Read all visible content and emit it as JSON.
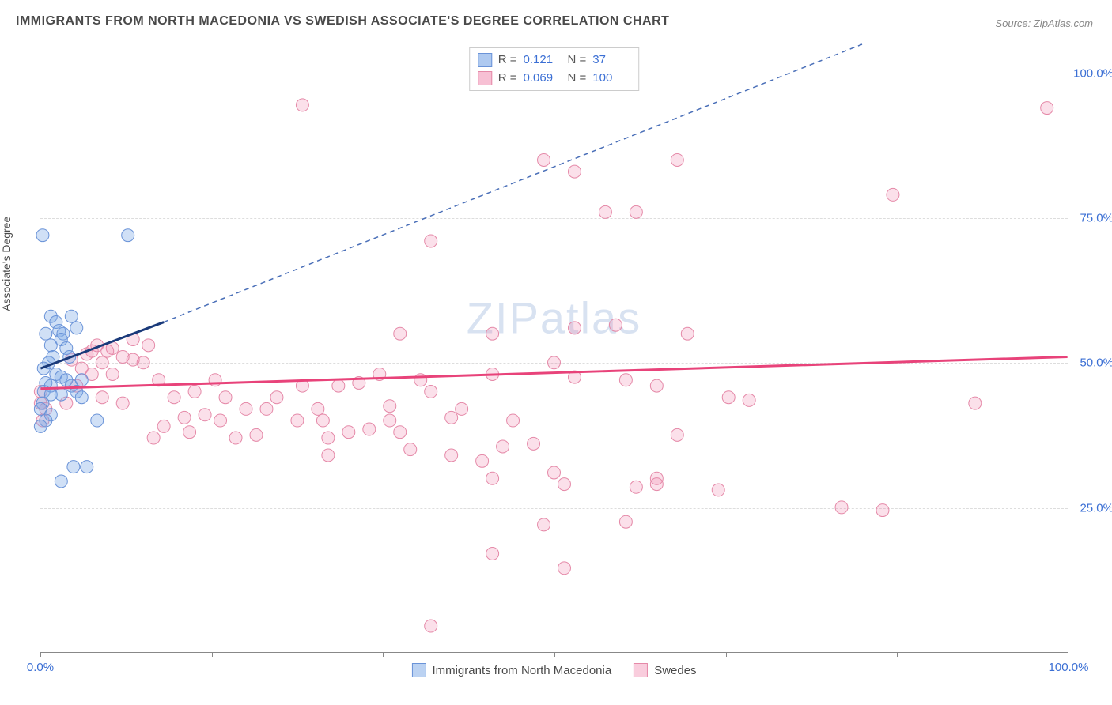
{
  "title": "IMMIGRANTS FROM NORTH MACEDONIA VS SWEDISH ASSOCIATE'S DEGREE CORRELATION CHART",
  "source": "Source: ZipAtlas.com",
  "y_axis_label": "Associate's Degree",
  "watermark": "ZIPatlas",
  "xlim": [
    0,
    100
  ],
  "ylim": [
    0,
    105
  ],
  "y_ticks": [
    25,
    50,
    75,
    100
  ],
  "y_tick_labels": [
    "25.0%",
    "50.0%",
    "75.0%",
    "100.0%"
  ],
  "x_ticks": [
    0,
    16.67,
    33.33,
    50,
    66.67,
    83.33,
    100
  ],
  "x_tick_labels": {
    "first": "0.0%",
    "last": "100.0%"
  },
  "series": {
    "blue": {
      "label": "Immigrants from North Macedonia",
      "fill_color": "rgba(120, 165, 230, 0.35)",
      "stroke_color": "#6a93d8",
      "R": "0.121",
      "N": "37",
      "marker_radius": 8,
      "trend_solid": {
        "x1": 0,
        "y1": 49,
        "x2": 12,
        "y2": 57,
        "color": "#1a3a7a",
        "width": 3
      },
      "trend_dashed": {
        "x1": 12,
        "y1": 57,
        "x2": 80,
        "y2": 105,
        "color": "#4a6fb8",
        "width": 1.5,
        "dash": "6,5"
      },
      "points": [
        [
          0.2,
          72
        ],
        [
          8.5,
          72
        ],
        [
          1,
          58
        ],
        [
          1.5,
          57
        ],
        [
          3,
          58
        ],
        [
          1.8,
          55.5
        ],
        [
          2.2,
          55
        ],
        [
          3.5,
          56
        ],
        [
          0.5,
          55
        ],
        [
          1,
          53
        ],
        [
          2,
          54
        ],
        [
          2.5,
          52.5
        ],
        [
          1.2,
          51
        ],
        [
          2.8,
          51
        ],
        [
          0.8,
          50
        ],
        [
          0.3,
          49
        ],
        [
          1.5,
          48
        ],
        [
          2,
          47.5
        ],
        [
          0.5,
          46.5
        ],
        [
          2.5,
          47
        ],
        [
          1,
          46
        ],
        [
          3,
          46
        ],
        [
          0.3,
          45
        ],
        [
          4,
          47
        ],
        [
          1,
          44.5
        ],
        [
          2,
          44.5
        ],
        [
          3.5,
          45
        ],
        [
          0.2,
          43
        ],
        [
          0,
          42
        ],
        [
          1,
          41
        ],
        [
          0.5,
          40
        ],
        [
          5.5,
          40
        ],
        [
          3.2,
          32
        ],
        [
          4.5,
          32
        ],
        [
          2,
          29.5
        ],
        [
          0,
          39
        ],
        [
          4,
          44
        ]
      ]
    },
    "pink": {
      "label": "Swedes",
      "fill_color": "rgba(240, 130, 170, 0.25)",
      "stroke_color": "#e589a8",
      "R": "0.069",
      "N": "100",
      "marker_radius": 8,
      "trend_solid": {
        "x1": 0,
        "y1": 45.5,
        "x2": 100,
        "y2": 51,
        "color": "#e8437a",
        "width": 3
      },
      "points": [
        [
          25.5,
          94.5
        ],
        [
          98,
          94
        ],
        [
          49,
          85
        ],
        [
          62,
          85
        ],
        [
          52,
          83
        ],
        [
          83,
          79
        ],
        [
          55,
          76
        ],
        [
          58,
          76
        ],
        [
          38,
          71
        ],
        [
          52,
          56
        ],
        [
          44,
          55
        ],
        [
          56,
          56.5
        ],
        [
          63,
          55
        ],
        [
          35,
          55
        ],
        [
          50,
          50
        ],
        [
          52,
          47.5
        ],
        [
          57,
          47
        ],
        [
          60,
          46
        ],
        [
          67,
          44
        ],
        [
          69,
          43.5
        ],
        [
          62,
          37.5
        ],
        [
          60,
          30
        ],
        [
          50,
          31
        ],
        [
          51,
          29
        ],
        [
          49,
          22
        ],
        [
          57,
          22.5
        ],
        [
          44,
          17
        ],
        [
          51,
          14.5
        ],
        [
          38,
          4.5
        ],
        [
          37,
          47
        ],
        [
          34,
          42.5
        ],
        [
          34,
          40
        ],
        [
          35,
          38
        ],
        [
          36,
          35
        ],
        [
          43,
          33
        ],
        [
          44,
          30
        ],
        [
          45,
          35.5
        ],
        [
          48,
          36
        ],
        [
          46,
          40
        ],
        [
          40,
          40.5
        ],
        [
          41,
          42
        ],
        [
          44,
          48
        ],
        [
          38,
          45
        ],
        [
          30,
          38
        ],
        [
          31,
          46.5
        ],
        [
          32,
          38.5
        ],
        [
          27,
          42
        ],
        [
          27.5,
          40
        ],
        [
          25,
          40
        ],
        [
          25.5,
          46
        ],
        [
          23,
          44
        ],
        [
          22,
          42
        ],
        [
          20,
          42
        ],
        [
          21,
          37.5
        ],
        [
          19,
          37
        ],
        [
          18,
          44
        ],
        [
          17,
          47
        ],
        [
          17.5,
          40
        ],
        [
          16,
          41
        ],
        [
          14.5,
          38
        ],
        [
          14,
          40.5
        ],
        [
          13,
          44
        ],
        [
          12,
          39
        ],
        [
          11,
          37
        ],
        [
          11.5,
          47
        ],
        [
          10,
          50
        ],
        [
          9,
          50.5
        ],
        [
          10.5,
          53
        ],
        [
          9,
          54
        ],
        [
          8,
          51
        ],
        [
          7,
          52.5
        ],
        [
          6.5,
          52
        ],
        [
          6,
          50
        ],
        [
          7,
          48
        ],
        [
          5.5,
          53
        ],
        [
          5,
          52
        ],
        [
          5,
          48
        ],
        [
          4,
          49
        ],
        [
          4.5,
          51.5
        ],
        [
          3,
          50.5
        ],
        [
          3.5,
          46
        ],
        [
          2.5,
          43
        ],
        [
          0.5,
          42
        ],
        [
          0,
          45
        ],
        [
          0,
          43
        ],
        [
          0.2,
          40
        ],
        [
          6,
          44
        ],
        [
          8,
          43
        ],
        [
          15,
          45
        ],
        [
          28,
          37
        ],
        [
          29,
          46
        ],
        [
          33,
          48
        ],
        [
          40,
          34
        ],
        [
          78,
          25
        ],
        [
          82,
          24.5
        ],
        [
          66,
          28
        ],
        [
          60,
          29
        ],
        [
          58,
          28.5
        ],
        [
          91,
          43
        ],
        [
          28,
          34
        ]
      ]
    }
  },
  "bottom_legend": [
    {
      "swatch_fill": "rgba(120,165,230,0.5)",
      "swatch_stroke": "#6a93d8",
      "label": "Immigrants from North Macedonia"
    },
    {
      "swatch_fill": "rgba(240,130,170,0.4)",
      "swatch_stroke": "#e589a8",
      "label": "Swedes"
    }
  ],
  "background_color": "#ffffff",
  "grid_color": "#dddddd",
  "axis_color": "#888888",
  "label_color": "#3b6fd4"
}
